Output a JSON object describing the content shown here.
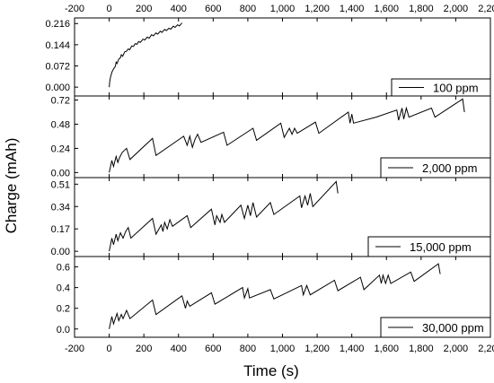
{
  "chart_data": {
    "type": "line",
    "xlabel": "Time (s)",
    "ylabel": "Charge (mAh)",
    "xlim": [
      -200,
      2200
    ],
    "x_ticks": [
      -200,
      0,
      200,
      400,
      600,
      800,
      1000,
      1200,
      1400,
      1600,
      1800,
      2000,
      2200
    ],
    "x_tick_labels": [
      "-200",
      "0",
      "200",
      "400",
      "600",
      "800",
      "1,000",
      "1,200",
      "1,400",
      "1,600",
      "1,800",
      "2,000",
      "2,200"
    ],
    "grid": false,
    "legend_position": "bottom-right",
    "line_color": "#000000",
    "panels": [
      {
        "legend": "100 ppm",
        "ylim": [
          -0.03,
          0.235
        ],
        "y_ticks": [
          0.0,
          0.072,
          0.144,
          0.216
        ],
        "y_tick_labels": [
          "0.000",
          "0.072",
          "0.144",
          "0.216"
        ],
        "points": [
          [
            0,
            0.0
          ],
          [
            3,
            0.02
          ],
          [
            8,
            0.035
          ],
          [
            15,
            0.05
          ],
          [
            25,
            0.062
          ],
          [
            35,
            0.07
          ],
          [
            40,
            0.085
          ],
          [
            45,
            0.08
          ],
          [
            55,
            0.095
          ],
          [
            65,
            0.1
          ],
          [
            70,
            0.11
          ],
          [
            78,
            0.105
          ],
          [
            90,
            0.12
          ],
          [
            100,
            0.122
          ],
          [
            110,
            0.13
          ],
          [
            118,
            0.127
          ],
          [
            130,
            0.14
          ],
          [
            140,
            0.138
          ],
          [
            150,
            0.148
          ],
          [
            160,
            0.145
          ],
          [
            170,
            0.155
          ],
          [
            180,
            0.152
          ],
          [
            195,
            0.163
          ],
          [
            205,
            0.16
          ],
          [
            220,
            0.17
          ],
          [
            230,
            0.166
          ],
          [
            245,
            0.178
          ],
          [
            255,
            0.174
          ],
          [
            270,
            0.184
          ],
          [
            280,
            0.18
          ],
          [
            295,
            0.19
          ],
          [
            305,
            0.186
          ],
          [
            320,
            0.196
          ],
          [
            330,
            0.192
          ],
          [
            345,
            0.2
          ],
          [
            355,
            0.197
          ],
          [
            370,
            0.207
          ],
          [
            380,
            0.203
          ],
          [
            395,
            0.212
          ],
          [
            405,
            0.208
          ],
          [
            420,
            0.218
          ]
        ]
      },
      {
        "legend": "2,000 ppm",
        "ylim": [
          -0.05,
          0.76
        ],
        "y_ticks": [
          0.0,
          0.24,
          0.48,
          0.72
        ],
        "y_tick_labels": [
          "0.00",
          "0.24",
          "0.48",
          "0.72"
        ],
        "points": [
          [
            0,
            0.0
          ],
          [
            15,
            0.12
          ],
          [
            25,
            0.06
          ],
          [
            40,
            0.16
          ],
          [
            50,
            0.1
          ],
          [
            60,
            0.15
          ],
          [
            75,
            0.2
          ],
          [
            100,
            0.24
          ],
          [
            120,
            0.13
          ],
          [
            250,
            0.34
          ],
          [
            270,
            0.17
          ],
          [
            430,
            0.36
          ],
          [
            450,
            0.27
          ],
          [
            465,
            0.36
          ],
          [
            480,
            0.25
          ],
          [
            495,
            0.33
          ],
          [
            510,
            0.38
          ],
          [
            530,
            0.3
          ],
          [
            660,
            0.4
          ],
          [
            680,
            0.27
          ],
          [
            830,
            0.44
          ],
          [
            850,
            0.32
          ],
          [
            990,
            0.49
          ],
          [
            1010,
            0.35
          ],
          [
            1040,
            0.44
          ],
          [
            1055,
            0.38
          ],
          [
            1070,
            0.44
          ],
          [
            1085,
            0.39
          ],
          [
            1190,
            0.5
          ],
          [
            1210,
            0.39
          ],
          [
            1380,
            0.6
          ],
          [
            1390,
            0.49
          ],
          [
            1400,
            0.58
          ],
          [
            1410,
            0.49
          ],
          [
            1540,
            0.55
          ],
          [
            1660,
            0.62
          ],
          [
            1670,
            0.52
          ],
          [
            1690,
            0.64
          ],
          [
            1700,
            0.53
          ],
          [
            1715,
            0.64
          ],
          [
            1730,
            0.55
          ],
          [
            1860,
            0.64
          ],
          [
            1880,
            0.55
          ],
          [
            2040,
            0.73
          ],
          [
            2050,
            0.6
          ]
        ]
      },
      {
        "legend": "15,000 ppm",
        "ylim": [
          -0.04,
          0.56
        ],
        "y_ticks": [
          0.0,
          0.17,
          0.34,
          0.51
        ],
        "y_tick_labels": [
          "0.00",
          "0.17",
          "0.34",
          "0.51"
        ],
        "points": [
          [
            0,
            0.0
          ],
          [
            15,
            0.1
          ],
          [
            25,
            0.05
          ],
          [
            40,
            0.13
          ],
          [
            50,
            0.08
          ],
          [
            65,
            0.14
          ],
          [
            80,
            0.1
          ],
          [
            95,
            0.15
          ],
          [
            110,
            0.18
          ],
          [
            125,
            0.1
          ],
          [
            250,
            0.25
          ],
          [
            270,
            0.13
          ],
          [
            300,
            0.2
          ],
          [
            310,
            0.15
          ],
          [
            320,
            0.22
          ],
          [
            335,
            0.17
          ],
          [
            350,
            0.24
          ],
          [
            365,
            0.19
          ],
          [
            450,
            0.27
          ],
          [
            470,
            0.18
          ],
          [
            590,
            0.32
          ],
          [
            610,
            0.2
          ],
          [
            620,
            0.27
          ],
          [
            640,
            0.22
          ],
          [
            650,
            0.28
          ],
          [
            665,
            0.22
          ],
          [
            760,
            0.35
          ],
          [
            780,
            0.25
          ],
          [
            800,
            0.35
          ],
          [
            815,
            0.27
          ],
          [
            830,
            0.37
          ],
          [
            850,
            0.26
          ],
          [
            930,
            0.37
          ],
          [
            950,
            0.28
          ],
          [
            1100,
            0.42
          ],
          [
            1110,
            0.33
          ],
          [
            1130,
            0.42
          ],
          [
            1145,
            0.35
          ],
          [
            1160,
            0.44
          ],
          [
            1175,
            0.34
          ],
          [
            1310,
            0.53
          ],
          [
            1320,
            0.44
          ]
        ]
      },
      {
        "legend": "30,000 ppm",
        "ylim": [
          -0.08,
          0.7
        ],
        "y_ticks": [
          0.0,
          0.2,
          0.4,
          0.6
        ],
        "y_tick_labels": [
          "0.0",
          "0.2",
          "0.4",
          "0.6"
        ],
        "points": [
          [
            0,
            0.0
          ],
          [
            15,
            0.12
          ],
          [
            25,
            0.05
          ],
          [
            45,
            0.15
          ],
          [
            55,
            0.08
          ],
          [
            70,
            0.14
          ],
          [
            80,
            0.1
          ],
          [
            100,
            0.18
          ],
          [
            120,
            0.1
          ],
          [
            250,
            0.28
          ],
          [
            270,
            0.14
          ],
          [
            420,
            0.32
          ],
          [
            440,
            0.2
          ],
          [
            450,
            0.27
          ],
          [
            465,
            0.22
          ],
          [
            590,
            0.35
          ],
          [
            610,
            0.24
          ],
          [
            770,
            0.4
          ],
          [
            780,
            0.3
          ],
          [
            800,
            0.39
          ],
          [
            810,
            0.3
          ],
          [
            930,
            0.38
          ],
          [
            950,
            0.29
          ],
          [
            1110,
            0.42
          ],
          [
            1120,
            0.33
          ],
          [
            1140,
            0.42
          ],
          [
            1160,
            0.33
          ],
          [
            1300,
            0.47
          ],
          [
            1320,
            0.37
          ],
          [
            1450,
            0.5
          ],
          [
            1470,
            0.38
          ],
          [
            1560,
            0.52
          ],
          [
            1570,
            0.44
          ],
          [
            1580,
            0.52
          ],
          [
            1595,
            0.44
          ],
          [
            1610,
            0.52
          ],
          [
            1625,
            0.44
          ],
          [
            1740,
            0.55
          ],
          [
            1760,
            0.46
          ],
          [
            1900,
            0.63
          ],
          [
            1910,
            0.53
          ]
        ]
      }
    ]
  }
}
